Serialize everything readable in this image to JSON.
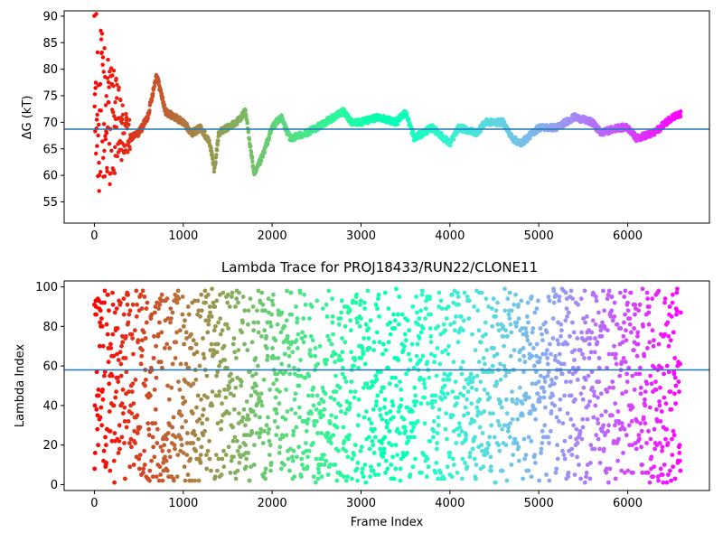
{
  "chart_data": [
    {
      "type": "scatter",
      "title": "",
      "xlabel": "",
      "ylabel": "ΔG (kT)",
      "xlim": [
        -340,
        6920
      ],
      "ylim": [
        51,
        91
      ],
      "xticks": [
        0,
        1000,
        2000,
        3000,
        4000,
        5000,
        6000
      ],
      "yticks": [
        55,
        60,
        65,
        70,
        75,
        80,
        85,
        90
      ],
      "n_points": 6600,
      "colormap": "rainbow",
      "hline": 68.7,
      "hline_color": "#1f77b4",
      "trace_knots": [
        [
          0,
          73
        ],
        [
          100,
          72
        ],
        [
          250,
          69
        ],
        [
          400,
          67
        ],
        [
          500,
          68
        ],
        [
          600,
          71
        ],
        [
          700,
          79
        ],
        [
          800,
          72
        ],
        [
          900,
          71
        ],
        [
          1000,
          70
        ],
        [
          1100,
          68
        ],
        [
          1200,
          69
        ],
        [
          1300,
          66
        ],
        [
          1350,
          61
        ],
        [
          1400,
          68
        ],
        [
          1500,
          69
        ],
        [
          1600,
          70
        ],
        [
          1700,
          72
        ],
        [
          1800,
          60
        ],
        [
          1900,
          64
        ],
        [
          2000,
          69
        ],
        [
          2100,
          71
        ],
        [
          2200,
          67
        ],
        [
          2400,
          68
        ],
        [
          2600,
          70
        ],
        [
          2800,
          72
        ],
        [
          2900,
          70
        ],
        [
          3000,
          70
        ],
        [
          3200,
          71
        ],
        [
          3400,
          70
        ],
        [
          3500,
          72
        ],
        [
          3600,
          67
        ],
        [
          3800,
          69
        ],
        [
          4000,
          66
        ],
        [
          4100,
          69
        ],
        [
          4300,
          68
        ],
        [
          4400,
          70
        ],
        [
          4600,
          70
        ],
        [
          4700,
          67
        ],
        [
          4800,
          66
        ],
        [
          5000,
          69
        ],
        [
          5200,
          69
        ],
        [
          5400,
          71
        ],
        [
          5600,
          70
        ],
        [
          5700,
          68
        ],
        [
          5900,
          69
        ],
        [
          6000,
          69
        ],
        [
          6100,
          67
        ],
        [
          6300,
          68
        ],
        [
          6500,
          71
        ],
        [
          6600,
          71.5
        ]
      ]
    },
    {
      "type": "scatter",
      "title": "Lambda Trace for PROJ18433/RUN22/CLONE11",
      "xlabel": "Frame Index",
      "ylabel": "Lambda Index",
      "xlim": [
        -340,
        6920
      ],
      "ylim": [
        -3,
        103
      ],
      "xticks": [
        0,
        1000,
        2000,
        3000,
        4000,
        5000,
        6000
      ],
      "yticks": [
        0,
        20,
        40,
        60,
        80,
        100
      ],
      "n_points": 6600,
      "colormap": "rainbow",
      "hline": 58,
      "hline_color": "#1f77b4"
    }
  ]
}
